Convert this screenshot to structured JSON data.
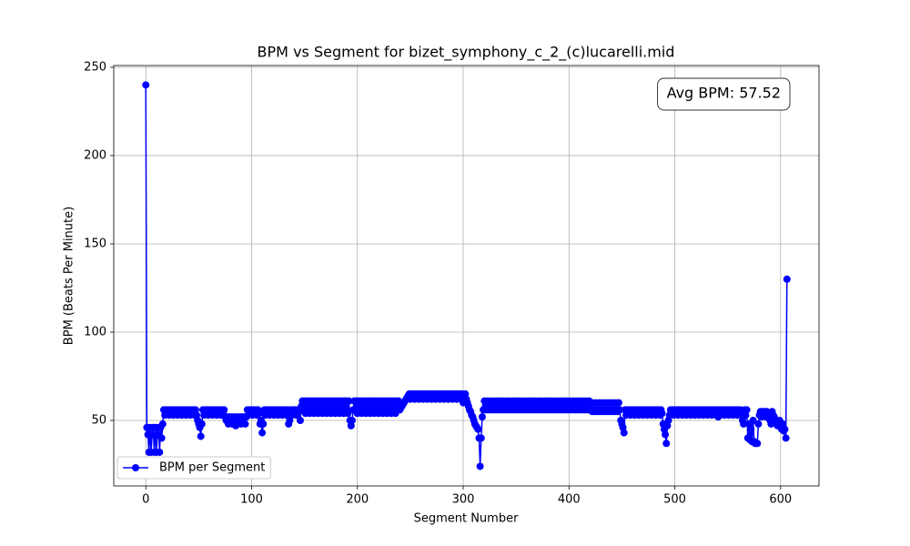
{
  "chart_data": {
    "type": "line",
    "title": "BPM vs Segment for bizet_symphony_c_2_(c)lucarelli.mid",
    "xlabel": "Segment Number",
    "ylabel": "BPM (Beats Per Minute)",
    "annotation": "Avg BPM: 57.52",
    "x": [
      0,
      1,
      2,
      3,
      4,
      5,
      6,
      7,
      8,
      9,
      10,
      11,
      12,
      13,
      14,
      15,
      16,
      17,
      18,
      19,
      20,
      21,
      22,
      23,
      24,
      25,
      26,
      27,
      28,
      29,
      30,
      31,
      32,
      33,
      34,
      35,
      36,
      37,
      38,
      39,
      40,
      41,
      42,
      43,
      44,
      45,
      46,
      47,
      48,
      49,
      50,
      51,
      52,
      53,
      54,
      55,
      56,
      57,
      58,
      59,
      60,
      61,
      62,
      63,
      64,
      65,
      66,
      67,
      68,
      69,
      70,
      71,
      72,
      73,
      74,
      75,
      76,
      77,
      78,
      79,
      80,
      81,
      82,
      83,
      84,
      85,
      86,
      87,
      88,
      89,
      90,
      91,
      92,
      93,
      94,
      95,
      96,
      97,
      98,
      99,
      100,
      101,
      102,
      103,
      104,
      105,
      106,
      107,
      108,
      109,
      110,
      111,
      112,
      113,
      114,
      115,
      116,
      117,
      118,
      119,
      120,
      121,
      122,
      123,
      124,
      125,
      126,
      127,
      128,
      129,
      130,
      131,
      132,
      133,
      134,
      135,
      136,
      137,
      138,
      139,
      140,
      141,
      142,
      143,
      144,
      145,
      146,
      147,
      148,
      149,
      150,
      151,
      152,
      153,
      154,
      155,
      156,
      157,
      158,
      159,
      160,
      161,
      162,
      163,
      164,
      165,
      166,
      167,
      168,
      169,
      170,
      171,
      172,
      173,
      174,
      175,
      176,
      177,
      178,
      179,
      180,
      181,
      182,
      183,
      184,
      185,
      186,
      187,
      188,
      189,
      190,
      191,
      192,
      193,
      194,
      195,
      196,
      197,
      198,
      199,
      200,
      201,
      202,
      203,
      204,
      205,
      206,
      207,
      208,
      209,
      210,
      211,
      212,
      213,
      214,
      215,
      216,
      217,
      218,
      219,
      220,
      221,
      222,
      223,
      224,
      225,
      226,
      227,
      228,
      229,
      230,
      231,
      232,
      233,
      234,
      235,
      236,
      237,
      238,
      239,
      240,
      241,
      242,
      243,
      244,
      245,
      246,
      247,
      248,
      249,
      250,
      251,
      252,
      253,
      254,
      255,
      256,
      257,
      258,
      259,
      260,
      261,
      262,
      263,
      264,
      265,
      266,
      267,
      268,
      269,
      270,
      271,
      272,
      273,
      274,
      275,
      276,
      277,
      278,
      279,
      280,
      281,
      282,
      283,
      284,
      285,
      286,
      287,
      288,
      289,
      290,
      291,
      292,
      293,
      294,
      295,
      296,
      297,
      298,
      299,
      300,
      301,
      302,
      303,
      304,
      305,
      306,
      307,
      308,
      309,
      310,
      311,
      312,
      313,
      314,
      315,
      316,
      317,
      318,
      319,
      320,
      321,
      322,
      323,
      324,
      325,
      326,
      327,
      328,
      329,
      330,
      331,
      332,
      333,
      334,
      335,
      336,
      337,
      338,
      339,
      340,
      341,
      342,
      343,
      344,
      345,
      346,
      347,
      348,
      349,
      350,
      351,
      352,
      353,
      354,
      355,
      356,
      357,
      358,
      359,
      360,
      361,
      362,
      363,
      364,
      365,
      366,
      367,
      368,
      369,
      370,
      371,
      372,
      373,
      374,
      375,
      376,
      377,
      378,
      379,
      380,
      381,
      382,
      383,
      384,
      385,
      386,
      387,
      388,
      389,
      390,
      391,
      392,
      393,
      394,
      395,
      396,
      397,
      398,
      399,
      400,
      401,
      402,
      403,
      404,
      405,
      406,
      407,
      408,
      409,
      410,
      411,
      412,
      413,
      414,
      415,
      416,
      417,
      418,
      419,
      420,
      421,
      422,
      423,
      424,
      425,
      426,
      427,
      428,
      429,
      430,
      431,
      432,
      433,
      434,
      435,
      436,
      437,
      438,
      439,
      440,
      441,
      442,
      443,
      444,
      445,
      446,
      447,
      448,
      449,
      450,
      451,
      452,
      453,
      454,
      455,
      456,
      457,
      458,
      459,
      460,
      461,
      462,
      463,
      464,
      465,
      466,
      467,
      468,
      469,
      470,
      471,
      472,
      473,
      474,
      475,
      476,
      477,
      478,
      479,
      480,
      481,
      482,
      483,
      484,
      485,
      486,
      487,
      488,
      489,
      490,
      491,
      492,
      493,
      494,
      495,
      496,
      497,
      498,
      499,
      500,
      501,
      502,
      503,
      504,
      505,
      506,
      507,
      508,
      509,
      510,
      511,
      512,
      513,
      514,
      515,
      516,
      517,
      518,
      519,
      520,
      521,
      522,
      523,
      524,
      525,
      526,
      527,
      528,
      529,
      530,
      531,
      532,
      533,
      534,
      535,
      536,
      537,
      538,
      539,
      540,
      541,
      542,
      543,
      544,
      545,
      546,
      547,
      548,
      549,
      550,
      551,
      552,
      553,
      554,
      555,
      556,
      557,
      558,
      559,
      560,
      561,
      562,
      563,
      564,
      565,
      566,
      567,
      568,
      569,
      570,
      571,
      572,
      573,
      574,
      575,
      576,
      577,
      578,
      579,
      580,
      581,
      582,
      583,
      584,
      585,
      586,
      587,
      588,
      589,
      590,
      591,
      592,
      593,
      594,
      595,
      596,
      597,
      598,
      599,
      600,
      601,
      602,
      603,
      604,
      605,
      606
    ],
    "series": [
      {
        "name": "BPM per Segment",
        "color": "#0000ff",
        "values": [
          240,
          46,
          42,
          32,
          46,
          32,
          42,
          46,
          32,
          46,
          32,
          42,
          46,
          32,
          46,
          40,
          48,
          56,
          53,
          56,
          54,
          56,
          53,
          56,
          54,
          56,
          53,
          56,
          54,
          56,
          53,
          56,
          54,
          56,
          53,
          56,
          54,
          56,
          53,
          56,
          54,
          56,
          53,
          56,
          54,
          56,
          53,
          56,
          53,
          50,
          48,
          46,
          41,
          48,
          56,
          53,
          56,
          54,
          56,
          53,
          56,
          54,
          56,
          53,
          56,
          54,
          56,
          53,
          56,
          54,
          56,
          53,
          56,
          54,
          56,
          52,
          50,
          52,
          48,
          52,
          50,
          52,
          48,
          52,
          50,
          47,
          52,
          48,
          50,
          52,
          48,
          52,
          50,
          52,
          48,
          52,
          56,
          53,
          56,
          54,
          56,
          53,
          56,
          54,
          56,
          53,
          56,
          54,
          48,
          50,
          43,
          48,
          56,
          53,
          56,
          54,
          56,
          53,
          56,
          54,
          56,
          53,
          56,
          54,
          56,
          53,
          56,
          54,
          56,
          53,
          56,
          54,
          56,
          53,
          56,
          48,
          50,
          56,
          53,
          56,
          54,
          56,
          53,
          56,
          54,
          56,
          50,
          58,
          61,
          56,
          61,
          54,
          61,
          56,
          61,
          54,
          61,
          56,
          61,
          54,
          61,
          56,
          61,
          54,
          61,
          56,
          61,
          54,
          61,
          56,
          61,
          54,
          61,
          56,
          61,
          54,
          61,
          56,
          61,
          54,
          61,
          56,
          61,
          54,
          61,
          56,
          61,
          54,
          61,
          56,
          61,
          54,
          61,
          50,
          47,
          50,
          56,
          61,
          56,
          61,
          54,
          61,
          56,
          61,
          54,
          61,
          56,
          61,
          54,
          61,
          56,
          61,
          54,
          61,
          56,
          61,
          54,
          61,
          56,
          61,
          54,
          61,
          56,
          61,
          54,
          61,
          56,
          61,
          54,
          61,
          56,
          61,
          54,
          61,
          56,
          61,
          54,
          61,
          56,
          61,
          56,
          57,
          58,
          59,
          60,
          61,
          62,
          63,
          64,
          65,
          62,
          65,
          63,
          65,
          62,
          65,
          63,
          65,
          62,
          65,
          63,
          65,
          62,
          65,
          63,
          65,
          62,
          65,
          63,
          65,
          62,
          65,
          63,
          65,
          62,
          65,
          63,
          65,
          62,
          65,
          63,
          65,
          62,
          65,
          63,
          65,
          62,
          65,
          63,
          65,
          62,
          65,
          63,
          65,
          62,
          65,
          63,
          65,
          62,
          65,
          60,
          63,
          65,
          62,
          60,
          58,
          56,
          55,
          53,
          52,
          50,
          48,
          47,
          46,
          45,
          40,
          24,
          40,
          52,
          56,
          61,
          58,
          56,
          61,
          58,
          56,
          61,
          58,
          56,
          61,
          58,
          56,
          61,
          58,
          56,
          61,
          58,
          56,
          61,
          58,
          56,
          61,
          58,
          56,
          61,
          58,
          56,
          61,
          58,
          56,
          61,
          58,
          56,
          61,
          58,
          56,
          61,
          58,
          56,
          61,
          58,
          56,
          61,
          58,
          56,
          61,
          58,
          56,
          61,
          58,
          56,
          61,
          58,
          56,
          61,
          58,
          56,
          61,
          58,
          56,
          61,
          58,
          56,
          61,
          58,
          56,
          61,
          58,
          56,
          61,
          58,
          56,
          61,
          58,
          56,
          61,
          58,
          56,
          61,
          58,
          56,
          61,
          58,
          56,
          61,
          58,
          56,
          61,
          58,
          56,
          61,
          58,
          56,
          61,
          58,
          56,
          61,
          58,
          56,
          61,
          60,
          56,
          55,
          60,
          56,
          55,
          60,
          56,
          55,
          60,
          56,
          55,
          60,
          56,
          55,
          60,
          56,
          55,
          60,
          56,
          55,
          60,
          56,
          55,
          60,
          56,
          55,
          60,
          56,
          50,
          48,
          46,
          43,
          56,
          53,
          56,
          54,
          56,
          53,
          56,
          54,
          56,
          53,
          56,
          54,
          56,
          53,
          56,
          54,
          56,
          53,
          56,
          54,
          56,
          53,
          56,
          54,
          56,
          53,
          56,
          54,
          56,
          53,
          56,
          54,
          56,
          53,
          56,
          54,
          48,
          45,
          42,
          37,
          47,
          50,
          53,
          56,
          54,
          56,
          53,
          56,
          54,
          56,
          53,
          56,
          54,
          56,
          53,
          56,
          54,
          56,
          53,
          56,
          54,
          56,
          53,
          56,
          54,
          56,
          53,
          56,
          54,
          56,
          53,
          56,
          54,
          56,
          53,
          56,
          54,
          56,
          53,
          56,
          54,
          56,
          53,
          56,
          54,
          56,
          53,
          56,
          52,
          56,
          53,
          56,
          54,
          56,
          53,
          56,
          54,
          56,
          53,
          56,
          54,
          56,
          53,
          56,
          54,
          56,
          53,
          56,
          54,
          56,
          53,
          50,
          48,
          56,
          53,
          56,
          40,
          48,
          39,
          45,
          38,
          50,
          38,
          37,
          37,
          37,
          48,
          53,
          55,
          52,
          55,
          53,
          55,
          52,
          55,
          53,
          52,
          50,
          48,
          55,
          53,
          52,
          50,
          48,
          47,
          48,
          50,
          47,
          45,
          48,
          44,
          45,
          40,
          130
        ]
      }
    ],
    "xlim": [
      -30.3,
      636.3
    ],
    "ylim": [
      12.9,
      251.0
    ],
    "xticks": [
      0,
      100,
      200,
      300,
      400,
      500,
      600
    ],
    "yticks": [
      50,
      100,
      150,
      200,
      250
    ],
    "grid": true,
    "legend": "lower left"
  }
}
